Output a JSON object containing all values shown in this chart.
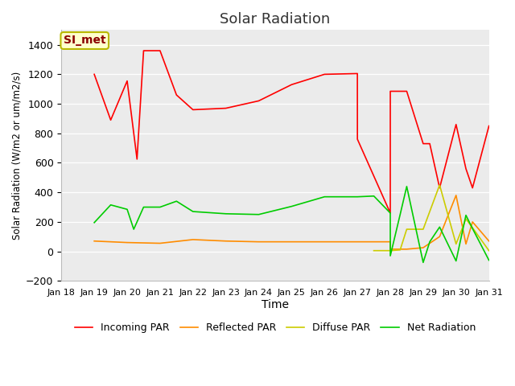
{
  "title": "Solar Radiation",
  "xlabel": "Time",
  "ylabel": "Solar Radiation (W/m2 or um/m2/s)",
  "ylim": [
    -200,
    1500
  ],
  "yticks": [
    -200,
    0,
    200,
    400,
    600,
    800,
    1000,
    1200,
    1400
  ],
  "annotation_text": "SI_met",
  "bg_color": "#ebebeb",
  "x_labels": [
    "Jan 18",
    "Jan 19",
    "Jan 20",
    "Jan 21",
    "Jan 22",
    "Jan 23",
    "Jan 24",
    "Jan 25",
    "Jan 26",
    "Jan 27",
    "Jan 28",
    "Jan 29",
    "Jan 30",
    "Jan 31"
  ],
  "x_day_offsets": [
    0,
    1,
    2,
    3,
    4,
    5,
    6,
    7,
    8,
    9,
    10,
    11,
    12,
    13
  ],
  "incoming_par": {
    "color": "#ff0000",
    "label": "Incoming PAR",
    "x": [
      1.0,
      1.0,
      1.5,
      2.0,
      2.3,
      2.5,
      3.0,
      3.5,
      4.0,
      5.0,
      6.0,
      7.0,
      8.0,
      9.0,
      9.0,
      9.0,
      9.001,
      10.0,
      10.0,
      10.001,
      10.5,
      11.0,
      11.2,
      11.5,
      12.0,
      12.3,
      12.5,
      13.0
    ],
    "y": [
      1200,
      1200,
      890,
      1155,
      625,
      1360,
      1360,
      1060,
      960,
      970,
      1020,
      1130,
      1200,
      1205,
      1205,
      1085,
      760,
      260,
      260,
      1085,
      1085,
      730,
      730,
      430,
      860,
      560,
      430,
      850
    ]
  },
  "reflected_par": {
    "color": "#ff8c00",
    "label": "Reflected PAR",
    "x": [
      1.0,
      2.0,
      3.0,
      4.0,
      5.0,
      6.0,
      7.0,
      8.0,
      9.0,
      9.5,
      10.0,
      10.0,
      10.001,
      10.3,
      10.5,
      11.0,
      11.5,
      12.0,
      12.3,
      12.5,
      13.0
    ],
    "y": [
      70,
      60,
      55,
      80,
      70,
      65,
      65,
      65,
      65,
      65,
      65,
      65,
      15,
      15,
      15,
      25,
      100,
      380,
      50,
      200,
      70
    ]
  },
  "diffuse_par": {
    "color": "#cccc00",
    "label": "Diffuse PAR",
    "x": [
      9.5,
      10.0,
      10.0,
      10.001,
      10.3,
      10.5,
      11.0,
      11.5,
      12.0,
      12.3,
      12.5,
      13.0
    ],
    "y": [
      5,
      5,
      5,
      5,
      10,
      150,
      150,
      450,
      50,
      220,
      160,
      5
    ]
  },
  "net_radiation": {
    "color": "#00cc00",
    "label": "Net Radiation",
    "x": [
      1.0,
      1.5,
      2.0,
      2.2,
      2.5,
      3.0,
      3.5,
      4.0,
      5.0,
      6.0,
      7.0,
      8.0,
      9.0,
      9.5,
      10.0,
      10.0,
      10.001,
      10.3,
      10.5,
      11.0,
      11.2,
      11.5,
      12.0,
      12.3,
      12.5,
      13.0
    ],
    "y": [
      195,
      315,
      285,
      150,
      300,
      300,
      340,
      270,
      255,
      250,
      305,
      370,
      370,
      375,
      260,
      260,
      -30,
      250,
      440,
      -75,
      65,
      165,
      -65,
      245,
      155,
      -60
    ]
  }
}
